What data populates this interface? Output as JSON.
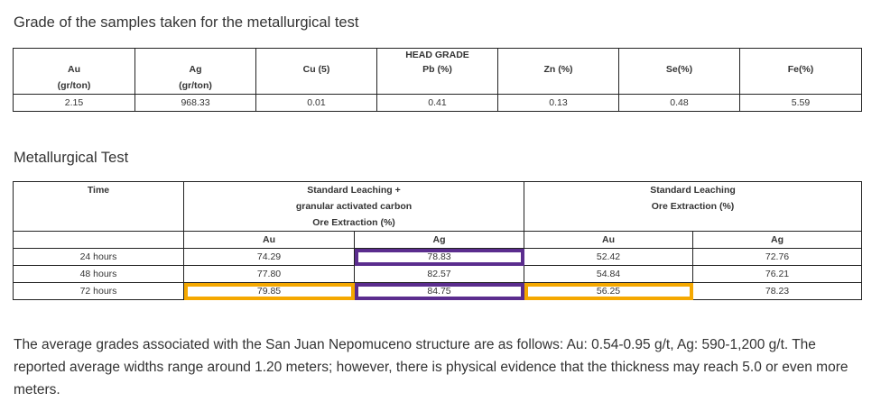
{
  "head": {
    "title": "Grade of the samples taken for the metallurgical test",
    "group_label": "HEAD GRADE",
    "columns": [
      {
        "name": "Au",
        "unit": "(gr/ton)",
        "value": "2.15"
      },
      {
        "name": "Ag",
        "unit": "(gr/ton)",
        "value": "968.33"
      },
      {
        "name": "Cu (5)",
        "unit": "",
        "value": "0.01"
      },
      {
        "name": "Pb (%)",
        "unit": "",
        "value": "0.41"
      },
      {
        "name": "Zn (%)",
        "unit": "",
        "value": "0.13"
      },
      {
        "name": "Se(%)",
        "unit": "",
        "value": "0.48"
      },
      {
        "name": "Fe(%)",
        "unit": "",
        "value": "5.59"
      }
    ]
  },
  "met": {
    "title": "Metallurgical Test",
    "time_label": "Time",
    "group1": {
      "line1": "Standard Leaching +",
      "line2": "granular activated carbon",
      "line3": "Ore Extraction (%)"
    },
    "group2": {
      "line1": "Standard Leaching",
      "line2": "Ore Extraction (%)"
    },
    "subheaders": [
      "Au",
      "Ag",
      "Au",
      "Ag"
    ],
    "rows": [
      {
        "time": "24 hours",
        "values": [
          "74.29",
          "78.83",
          "52.42",
          "72.76"
        ]
      },
      {
        "time": "48 hours",
        "values": [
          "77.80",
          "82.57",
          "54.84",
          "76.21"
        ]
      },
      {
        "time": "72 hours",
        "values": [
          "79.85",
          "84.75",
          "56.25",
          "78.23"
        ]
      }
    ],
    "highlight_colors": {
      "purple": "#5b2d8e",
      "orange": "#f5a800"
    }
  },
  "paragraph": "The average grades associated with the San Juan Nepomuceno structure are as follows: Au: 0.54-0.95 g/t, Ag: 590-1,200 g/t. The reported average widths range around 1.20 meters; however, there is physical evidence that the thickness may reach 5.0 or even more meters."
}
